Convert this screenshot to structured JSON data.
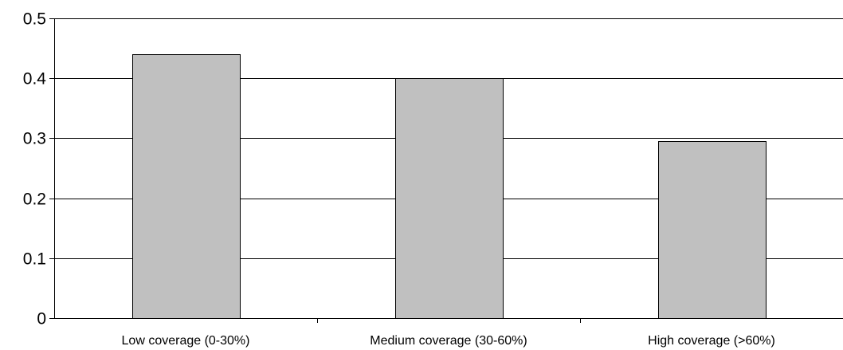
{
  "chart_data": {
    "type": "bar",
    "title": "",
    "xlabel": "",
    "ylabel": "",
    "categories": [
      "Low coverage (0-30%)",
      "Medium coverage (30-60%)",
      "High coverage (>60%)"
    ],
    "values": [
      0.44,
      0.4,
      0.295
    ],
    "ylim": [
      0,
      0.5
    ],
    "yticks": [
      0,
      0.1,
      0.2,
      0.3,
      0.4,
      0.5
    ],
    "ytick_labels": [
      "0",
      "0.1",
      "0.2",
      "0.3",
      "0.4",
      "0.5"
    ],
    "grid": true,
    "legend": "none",
    "bar_color": "#c0c0c0",
    "bar_edge_color": "#000000",
    "grid_color": "#000000"
  }
}
